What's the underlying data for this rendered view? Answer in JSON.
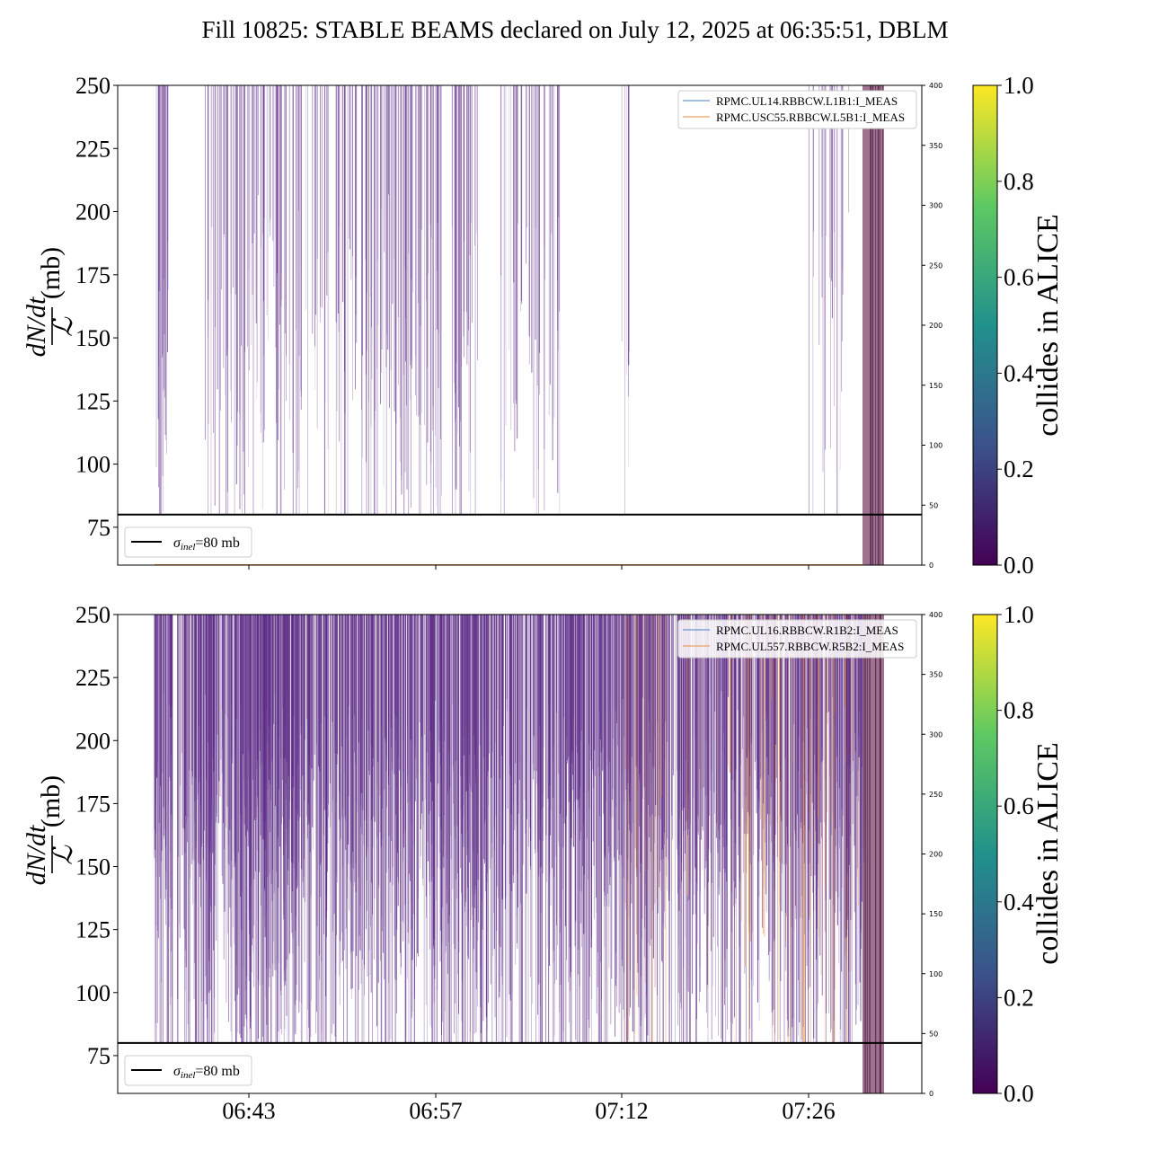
{
  "title": "Fill 10825: STABLE BEAMS declared on July 12, 2025 at 06:35:51, DBLM",
  "colors": {
    "series_purple": "#5b2a86",
    "series_blue": "#4c7fc0",
    "series_orange": "#e8913a",
    "band": "#8e5a7a",
    "colormap": [
      "#440154",
      "#3b528b",
      "#21918c",
      "#5ec962",
      "#fde725"
    ]
  },
  "chart_data": [
    {
      "type": "line",
      "panel": "top",
      "ylabel_math": {
        "numerator": "dN/dt",
        "denominator": "ℒ",
        "unit": "(mb)"
      },
      "ylim": [
        60,
        250
      ],
      "yticks": [
        75,
        100,
        125,
        150,
        175,
        200,
        225,
        250
      ],
      "y2lim": [
        0,
        400
      ],
      "y2ticks": [
        0,
        50,
        100,
        150,
        200,
        250,
        300,
        350,
        400
      ],
      "xticks": [
        "06:43",
        "06:57",
        "07:12",
        "07:26"
      ],
      "xticks_visible": false,
      "hline": {
        "value": 80,
        "label_sym": "σ",
        "label_sub": "inel",
        "label_rest": "=80 mb"
      },
      "series": [
        {
          "name": "RPMC.UL14.RBBCW.L1B1:I_MEAS",
          "color": "#4c7fc0",
          "value": 0
        },
        {
          "name": "RPMC.USC55.RBBCW.L5B1:I_MEAS",
          "color": "#e8913a",
          "value": 0
        }
      ],
      "dense_region": "sparse",
      "colorbar": {
        "label": "collides in ALICE",
        "ticks": [
          "0.0",
          "0.2",
          "0.4",
          "0.6",
          "0.8",
          "1.0"
        ]
      }
    },
    {
      "type": "line",
      "panel": "bottom",
      "ylabel_math": {
        "numerator": "dN/dt",
        "denominator": "ℒ",
        "unit": "(mb)"
      },
      "ylim": [
        60,
        250
      ],
      "yticks": [
        75,
        100,
        125,
        150,
        175,
        200,
        225,
        250
      ],
      "y2lim": [
        0,
        400
      ],
      "y2ticks": [
        0,
        50,
        100,
        150,
        200,
        250,
        300,
        350,
        400
      ],
      "xticks": [
        "06:43",
        "06:57",
        "07:12",
        "07:26"
      ],
      "xticks_visible": true,
      "hline": {
        "value": 80,
        "label_sym": "σ",
        "label_sub": "inel",
        "label_rest": "=80 mb"
      },
      "series": [
        {
          "name": "RPMC.UL16.RBBCW.R1B2:I_MEAS",
          "color": "#4c7fc0",
          "value": 0
        },
        {
          "name": "RPMC.UL557.RBBCW.R5B2:I_MEAS",
          "color": "#e8913a",
          "value": 0
        }
      ],
      "dense_region": "dense",
      "colorbar": {
        "label": "collides in ALICE",
        "ticks": [
          "0.0",
          "0.2",
          "0.4",
          "0.6",
          "0.8",
          "1.0"
        ]
      }
    }
  ]
}
